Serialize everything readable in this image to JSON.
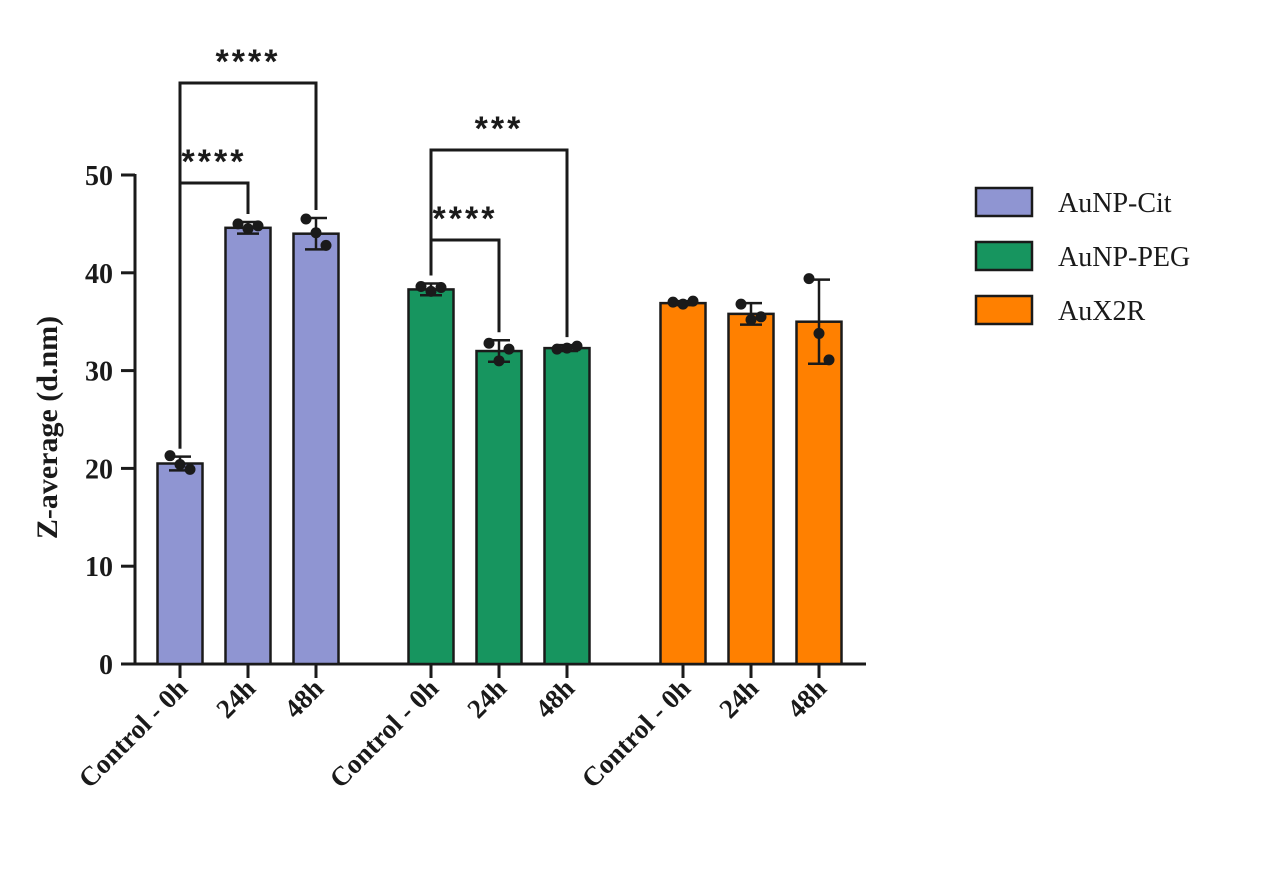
{
  "chart_data": {
    "type": "bar",
    "title": "",
    "ylabel": "Z-average (d.nm)",
    "xlabel": "",
    "ylim": [
      0,
      50
    ],
    "yticks": [
      0,
      10,
      20,
      30,
      40,
      50
    ],
    "grid": false,
    "legend_position": "right",
    "categories": [
      "Control - 0h",
      "24h",
      "48h"
    ],
    "series": [
      {
        "name": "AuNP-Cit",
        "color": "#8f95d2",
        "values": [
          20.5,
          44.6,
          44.0
        ],
        "error": [
          [
            0.7,
            0.7
          ],
          [
            0.6,
            0.6
          ],
          [
            1.6,
            1.6
          ]
        ],
        "points": [
          [
            21.3,
            20.4,
            19.9
          ],
          [
            45.0,
            44.5,
            44.8
          ],
          [
            45.5,
            44.1,
            42.8
          ]
        ]
      },
      {
        "name": "AuNP-PEG",
        "color": "#17955f",
        "values": [
          38.3,
          32.0,
          32.3
        ],
        "error": [
          [
            0.6,
            0.6
          ],
          [
            1.1,
            1.1
          ],
          [
            0.3,
            0.3
          ]
        ],
        "points": [
          [
            38.6,
            38.1,
            38.5
          ],
          [
            32.8,
            31.0,
            32.2
          ],
          [
            32.2,
            32.3,
            32.5
          ]
        ]
      },
      {
        "name": "AuX2R",
        "color": "#ff8000",
        "values": [
          36.9,
          35.8,
          35.0
        ],
        "error": [
          [
            0.2,
            0.2
          ],
          [
            1.1,
            1.1
          ],
          [
            4.3,
            4.3
          ]
        ],
        "points": [
          [
            37.0,
            36.8,
            37.1
          ],
          [
            36.8,
            35.2,
            35.5
          ],
          [
            39.4,
            33.8,
            31.1
          ]
        ]
      }
    ],
    "annotations": [
      {
        "label": "****",
        "series": 0,
        "from": 0,
        "to": 2
      },
      {
        "label": "****",
        "series": 0,
        "from": 0,
        "to": 1
      },
      {
        "label": "***",
        "series": 1,
        "from": 0,
        "to": 2
      },
      {
        "label": "****",
        "series": 1,
        "from": 0,
        "to": 1
      }
    ]
  }
}
